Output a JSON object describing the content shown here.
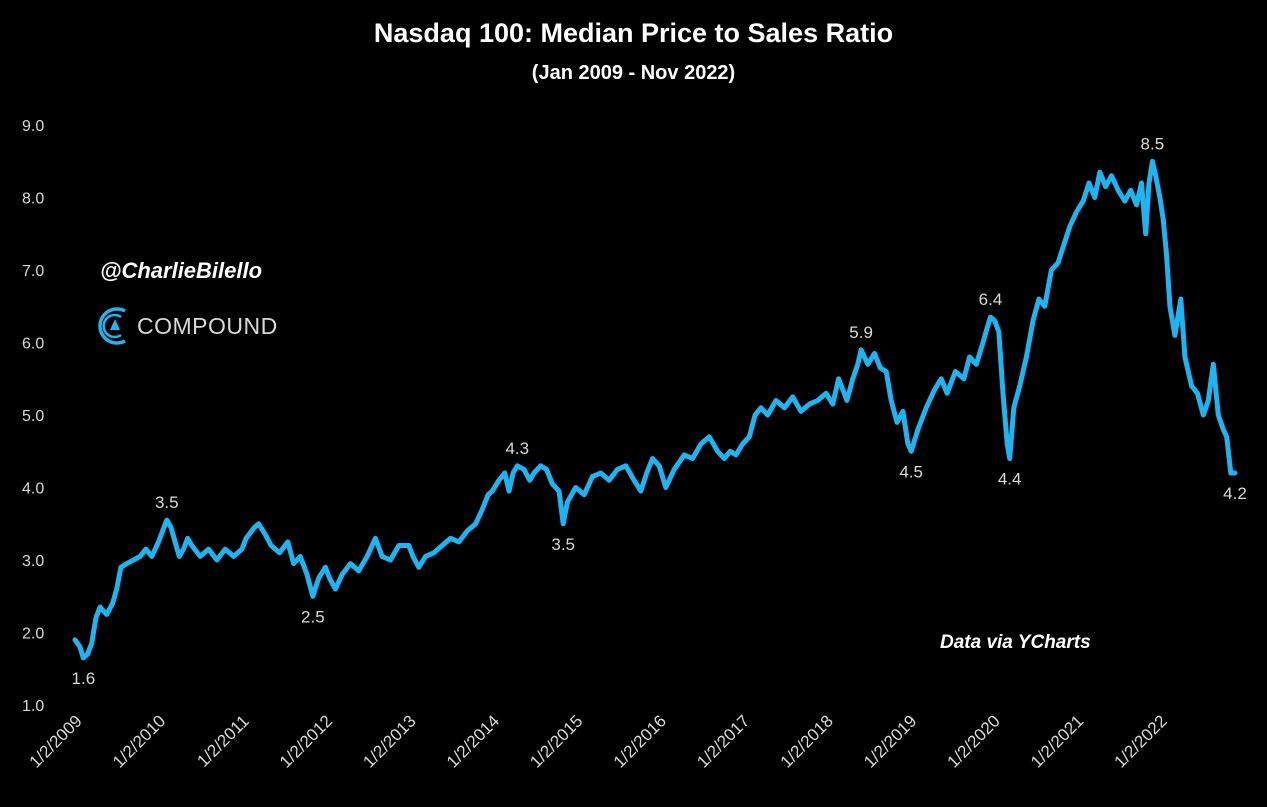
{
  "chart_data": {
    "type": "line",
    "title": "Nasdaq 100: Median Price to Sales Ratio",
    "subtitle": "(Jan 2009 - Nov 2022)",
    "xlabel": "",
    "ylabel": "",
    "ylim": [
      1.0,
      9.0
    ],
    "y_ticks": [
      "1.0",
      "2.0",
      "3.0",
      "4.0",
      "5.0",
      "6.0",
      "7.0",
      "8.0",
      "9.0"
    ],
    "x_range": [
      2009.0,
      2022.9
    ],
    "x_ticks": [
      {
        "x": 2009,
        "label": "1/2/2009"
      },
      {
        "x": 2010,
        "label": "1/2/2010"
      },
      {
        "x": 2011,
        "label": "1/2/2011"
      },
      {
        "x": 2012,
        "label": "1/2/2012"
      },
      {
        "x": 2013,
        "label": "1/2/2013"
      },
      {
        "x": 2014,
        "label": "1/2/2014"
      },
      {
        "x": 2015,
        "label": "1/2/2015"
      },
      {
        "x": 2016,
        "label": "1/2/2016"
      },
      {
        "x": 2017,
        "label": "1/2/2017"
      },
      {
        "x": 2018,
        "label": "1/2/2018"
      },
      {
        "x": 2019,
        "label": "1/2/2019"
      },
      {
        "x": 2020,
        "label": "1/2/2020"
      },
      {
        "x": 2021,
        "label": "1/2/2021"
      },
      {
        "x": 2022,
        "label": "1/2/2022"
      }
    ],
    "series": [
      {
        "name": "Median Price to Sales Ratio",
        "color": "#1fb4f0",
        "points": [
          [
            2009.0,
            1.9
          ],
          [
            2009.06,
            1.8
          ],
          [
            2009.1,
            1.65
          ],
          [
            2009.15,
            1.7
          ],
          [
            2009.2,
            1.85
          ],
          [
            2009.25,
            2.2
          ],
          [
            2009.3,
            2.35
          ],
          [
            2009.38,
            2.25
          ],
          [
            2009.45,
            2.4
          ],
          [
            2009.5,
            2.6
          ],
          [
            2009.55,
            2.9
          ],
          [
            2009.62,
            2.95
          ],
          [
            2009.7,
            3.0
          ],
          [
            2009.78,
            3.05
          ],
          [
            2009.85,
            3.15
          ],
          [
            2009.92,
            3.05
          ],
          [
            2010.0,
            3.25
          ],
          [
            2010.05,
            3.4
          ],
          [
            2010.1,
            3.55
          ],
          [
            2010.15,
            3.45
          ],
          [
            2010.2,
            3.25
          ],
          [
            2010.25,
            3.05
          ],
          [
            2010.3,
            3.15
          ],
          [
            2010.35,
            3.3
          ],
          [
            2010.4,
            3.2
          ],
          [
            2010.5,
            3.05
          ],
          [
            2010.6,
            3.15
          ],
          [
            2010.7,
            3.0
          ],
          [
            2010.8,
            3.15
          ],
          [
            2010.9,
            3.05
          ],
          [
            2011.0,
            3.15
          ],
          [
            2011.05,
            3.3
          ],
          [
            2011.15,
            3.45
          ],
          [
            2011.2,
            3.5
          ],
          [
            2011.28,
            3.35
          ],
          [
            2011.35,
            3.2
          ],
          [
            2011.45,
            3.1
          ],
          [
            2011.55,
            3.25
          ],
          [
            2011.62,
            2.95
          ],
          [
            2011.7,
            3.05
          ],
          [
            2011.78,
            2.8
          ],
          [
            2011.85,
            2.5
          ],
          [
            2011.92,
            2.75
          ],
          [
            2012.0,
            2.9
          ],
          [
            2012.05,
            2.75
          ],
          [
            2012.12,
            2.6
          ],
          [
            2012.2,
            2.8
          ],
          [
            2012.3,
            2.95
          ],
          [
            2012.4,
            2.85
          ],
          [
            2012.5,
            3.05
          ],
          [
            2012.6,
            3.3
          ],
          [
            2012.68,
            3.05
          ],
          [
            2012.78,
            3.0
          ],
          [
            2012.88,
            3.2
          ],
          [
            2013.0,
            3.2
          ],
          [
            2013.05,
            3.05
          ],
          [
            2013.12,
            2.9
          ],
          [
            2013.2,
            3.05
          ],
          [
            2013.3,
            3.1
          ],
          [
            2013.4,
            3.2
          ],
          [
            2013.5,
            3.3
          ],
          [
            2013.6,
            3.25
          ],
          [
            2013.7,
            3.4
          ],
          [
            2013.8,
            3.5
          ],
          [
            2013.88,
            3.7
          ],
          [
            2013.95,
            3.9
          ],
          [
            2014.0,
            3.95
          ],
          [
            2014.08,
            4.1
          ],
          [
            2014.15,
            4.2
          ],
          [
            2014.2,
            3.95
          ],
          [
            2014.25,
            4.2
          ],
          [
            2014.3,
            4.3
          ],
          [
            2014.38,
            4.25
          ],
          [
            2014.45,
            4.1
          ],
          [
            2014.5,
            4.2
          ],
          [
            2014.58,
            4.3
          ],
          [
            2014.65,
            4.25
          ],
          [
            2014.72,
            4.05
          ],
          [
            2014.8,
            3.95
          ],
          [
            2014.85,
            3.5
          ],
          [
            2014.9,
            3.8
          ],
          [
            2015.0,
            4.0
          ],
          [
            2015.1,
            3.9
          ],
          [
            2015.2,
            4.15
          ],
          [
            2015.3,
            4.2
          ],
          [
            2015.4,
            4.1
          ],
          [
            2015.5,
            4.25
          ],
          [
            2015.6,
            4.3
          ],
          [
            2015.7,
            4.1
          ],
          [
            2015.78,
            3.95
          ],
          [
            2015.85,
            4.2
          ],
          [
            2015.92,
            4.4
          ],
          [
            2016.0,
            4.3
          ],
          [
            2016.08,
            4.0
          ],
          [
            2016.18,
            4.25
          ],
          [
            2016.3,
            4.45
          ],
          [
            2016.4,
            4.4
          ],
          [
            2016.5,
            4.6
          ],
          [
            2016.6,
            4.7
          ],
          [
            2016.7,
            4.5
          ],
          [
            2016.78,
            4.4
          ],
          [
            2016.85,
            4.5
          ],
          [
            2016.92,
            4.45
          ],
          [
            2017.0,
            4.6
          ],
          [
            2017.08,
            4.7
          ],
          [
            2017.15,
            5.0
          ],
          [
            2017.22,
            5.1
          ],
          [
            2017.3,
            5.0
          ],
          [
            2017.4,
            5.2
          ],
          [
            2017.5,
            5.1
          ],
          [
            2017.6,
            5.25
          ],
          [
            2017.7,
            5.05
          ],
          [
            2017.8,
            5.15
          ],
          [
            2017.9,
            5.2
          ],
          [
            2018.0,
            5.3
          ],
          [
            2018.08,
            5.15
          ],
          [
            2018.15,
            5.5
          ],
          [
            2018.2,
            5.35
          ],
          [
            2018.25,
            5.2
          ],
          [
            2018.32,
            5.5
          ],
          [
            2018.38,
            5.7
          ],
          [
            2018.42,
            5.9
          ],
          [
            2018.5,
            5.7
          ],
          [
            2018.58,
            5.85
          ],
          [
            2018.65,
            5.65
          ],
          [
            2018.72,
            5.6
          ],
          [
            2018.78,
            5.2
          ],
          [
            2018.85,
            4.9
          ],
          [
            2018.92,
            5.05
          ],
          [
            2018.98,
            4.6
          ],
          [
            2019.02,
            4.5
          ],
          [
            2019.1,
            4.8
          ],
          [
            2019.2,
            5.1
          ],
          [
            2019.3,
            5.35
          ],
          [
            2019.38,
            5.5
          ],
          [
            2019.45,
            5.3
          ],
          [
            2019.55,
            5.6
          ],
          [
            2019.65,
            5.5
          ],
          [
            2019.72,
            5.8
          ],
          [
            2019.8,
            5.7
          ],
          [
            2019.88,
            6.0
          ],
          [
            2019.93,
            6.2
          ],
          [
            2019.97,
            6.35
          ],
          [
            2020.02,
            6.3
          ],
          [
            2020.07,
            6.15
          ],
          [
            2020.12,
            5.3
          ],
          [
            2020.17,
            4.6
          ],
          [
            2020.2,
            4.4
          ],
          [
            2020.25,
            5.1
          ],
          [
            2020.32,
            5.4
          ],
          [
            2020.4,
            5.8
          ],
          [
            2020.48,
            6.3
          ],
          [
            2020.55,
            6.6
          ],
          [
            2020.62,
            6.5
          ],
          [
            2020.7,
            7.0
          ],
          [
            2020.78,
            7.1
          ],
          [
            2020.85,
            7.35
          ],
          [
            2020.92,
            7.6
          ],
          [
            2021.0,
            7.8
          ],
          [
            2021.08,
            7.95
          ],
          [
            2021.15,
            8.2
          ],
          [
            2021.22,
            8.0
          ],
          [
            2021.28,
            8.35
          ],
          [
            2021.35,
            8.15
          ],
          [
            2021.42,
            8.3
          ],
          [
            2021.5,
            8.1
          ],
          [
            2021.58,
            7.95
          ],
          [
            2021.65,
            8.1
          ],
          [
            2021.72,
            7.9
          ],
          [
            2021.78,
            8.2
          ],
          [
            2021.83,
            7.5
          ],
          [
            2021.87,
            8.2
          ],
          [
            2021.91,
            8.5
          ],
          [
            2021.95,
            8.3
          ],
          [
            2022.0,
            8.0
          ],
          [
            2022.04,
            7.7
          ],
          [
            2022.08,
            7.2
          ],
          [
            2022.12,
            6.5
          ],
          [
            2022.18,
            6.1
          ],
          [
            2022.25,
            6.6
          ],
          [
            2022.3,
            5.8
          ],
          [
            2022.38,
            5.4
          ],
          [
            2022.45,
            5.3
          ],
          [
            2022.52,
            5.0
          ],
          [
            2022.58,
            5.2
          ],
          [
            2022.64,
            5.7
          ],
          [
            2022.7,
            5.0
          ],
          [
            2022.76,
            4.8
          ],
          [
            2022.8,
            4.7
          ],
          [
            2022.85,
            4.2
          ],
          [
            2022.9,
            4.2
          ]
        ]
      }
    ],
    "annotations": [
      {
        "x": 2009.1,
        "y": 1.65,
        "text": "1.6",
        "pos": "below"
      },
      {
        "x": 2010.1,
        "y": 3.55,
        "text": "3.5",
        "pos": "above"
      },
      {
        "x": 2011.85,
        "y": 2.5,
        "text": "2.5",
        "pos": "below"
      },
      {
        "x": 2014.3,
        "y": 4.3,
        "text": "4.3",
        "pos": "above"
      },
      {
        "x": 2014.85,
        "y": 3.5,
        "text": "3.5",
        "pos": "below"
      },
      {
        "x": 2018.42,
        "y": 5.9,
        "text": "5.9",
        "pos": "above"
      },
      {
        "x": 2019.02,
        "y": 4.5,
        "text": "4.5",
        "pos": "below"
      },
      {
        "x": 2019.97,
        "y": 6.35,
        "text": "6.4",
        "pos": "above"
      },
      {
        "x": 2020.2,
        "y": 4.4,
        "text": "4.4",
        "pos": "below"
      },
      {
        "x": 2021.91,
        "y": 8.5,
        "text": "8.5",
        "pos": "above"
      },
      {
        "x": 2022.9,
        "y": 4.2,
        "text": "4.2",
        "pos": "below"
      }
    ],
    "grid": false,
    "legend": "none"
  },
  "watermark": {
    "handle": "@CharlieBilello",
    "brand": "COMPOUND",
    "brand_color": "#1fb4f0"
  },
  "source": "Data via YCharts",
  "colors": {
    "background": "#000000",
    "text": "#ffffff",
    "label": "#d9d9d9",
    "line": "#1fb4f0"
  }
}
